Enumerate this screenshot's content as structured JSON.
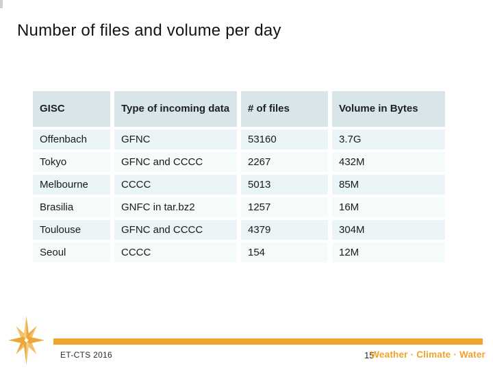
{
  "slide": {
    "title": "Number of files and volume per day",
    "table": {
      "headers": [
        "GISC",
        "Type of incoming data",
        "# of files",
        "Volume in Bytes"
      ],
      "rows": [
        [
          "Offenbach",
          "GFNC",
          "53160",
          "3.7G"
        ],
        [
          "Tokyo",
          "GFNC and CCCC",
          "2267",
          "432M"
        ],
        [
          "Melbourne",
          "CCCC",
          "5013",
          "85M"
        ],
        [
          "Brasilia",
          "GNFC in tar.bz2",
          "1257",
          "16M"
        ],
        [
          "Toulouse",
          "GFNC and CCCC",
          "4379",
          "304M"
        ],
        [
          "Seoul",
          "CCCC",
          "154",
          "12M"
        ]
      ]
    },
    "footer": {
      "left_text": "ET-CTS 2016",
      "page_number": "15",
      "brand_text": "Weather · Climate · Water",
      "logo_icon": "wmo-compass-star-icon"
    },
    "colors": {
      "accent_gold": "#f0a42c",
      "table_header_bg": "#d8e6e9",
      "table_row_odd_bg": "#ebf4f6",
      "table_row_even_bg": "#f5fafb",
      "text": "#1a1a1a"
    }
  }
}
